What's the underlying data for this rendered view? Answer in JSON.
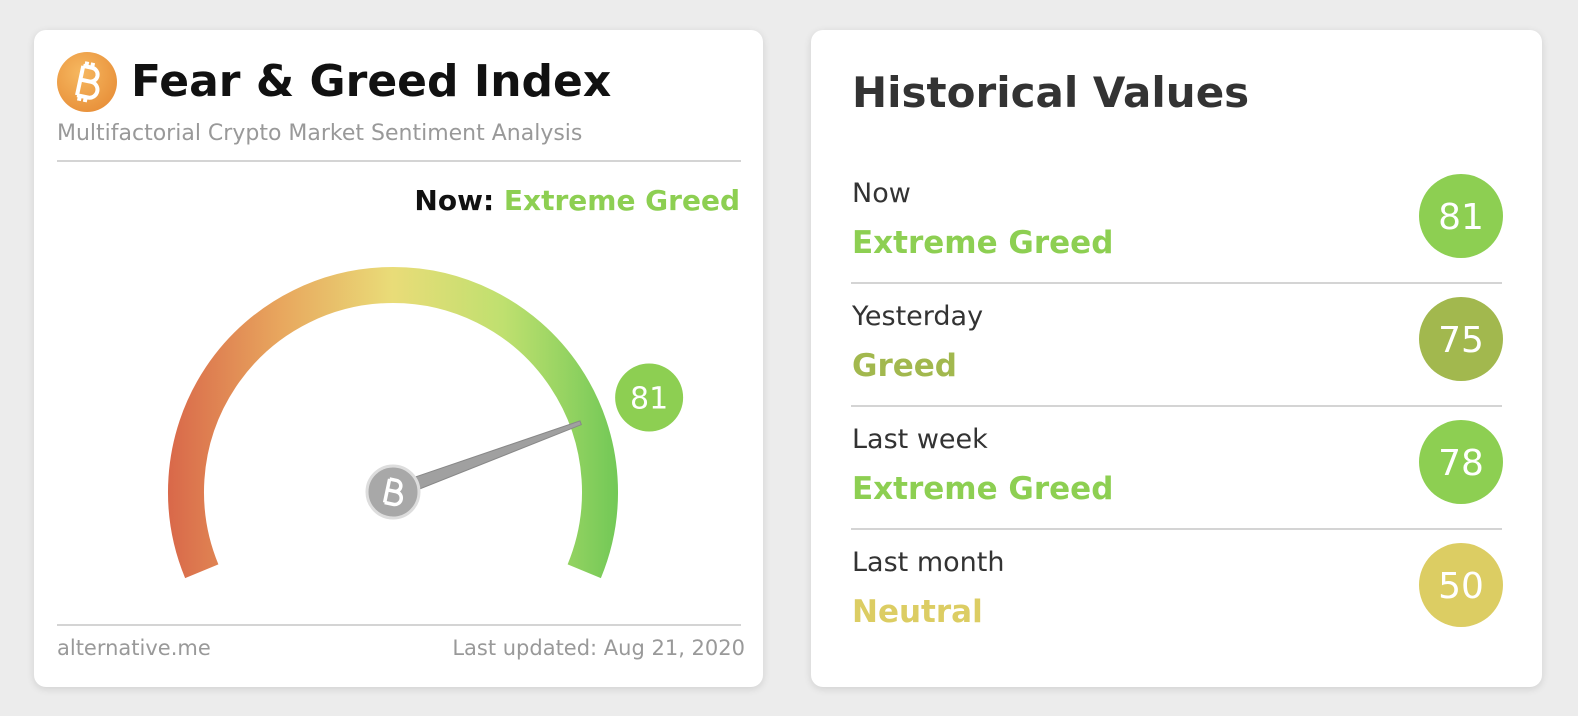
{
  "gauge_card": {
    "title": "Fear & Greed Index",
    "subtitle": "Multifactorial Crypto Market Sentiment Analysis",
    "now_label": "Now:",
    "now_classification": "Extreme Greed",
    "value": 81,
    "range": [
      0,
      100
    ],
    "color": "#8dcf52",
    "source": "alternative.me",
    "last_updated": "Last updated: Aug 21, 2020"
  },
  "historical": {
    "title": "Historical Values",
    "rows": [
      {
        "period": "Now",
        "classification": "Extreme Greed",
        "value": 81,
        "color": "#8dcf52"
      },
      {
        "period": "Yesterday",
        "classification": "Greed",
        "value": 75,
        "color": "#a2b84e"
      },
      {
        "period": "Last week",
        "classification": "Extreme Greed",
        "value": 78,
        "color": "#8dcf52"
      },
      {
        "period": "Last month",
        "classification": "Neutral",
        "value": 50,
        "color": "#dccd63"
      }
    ]
  }
}
